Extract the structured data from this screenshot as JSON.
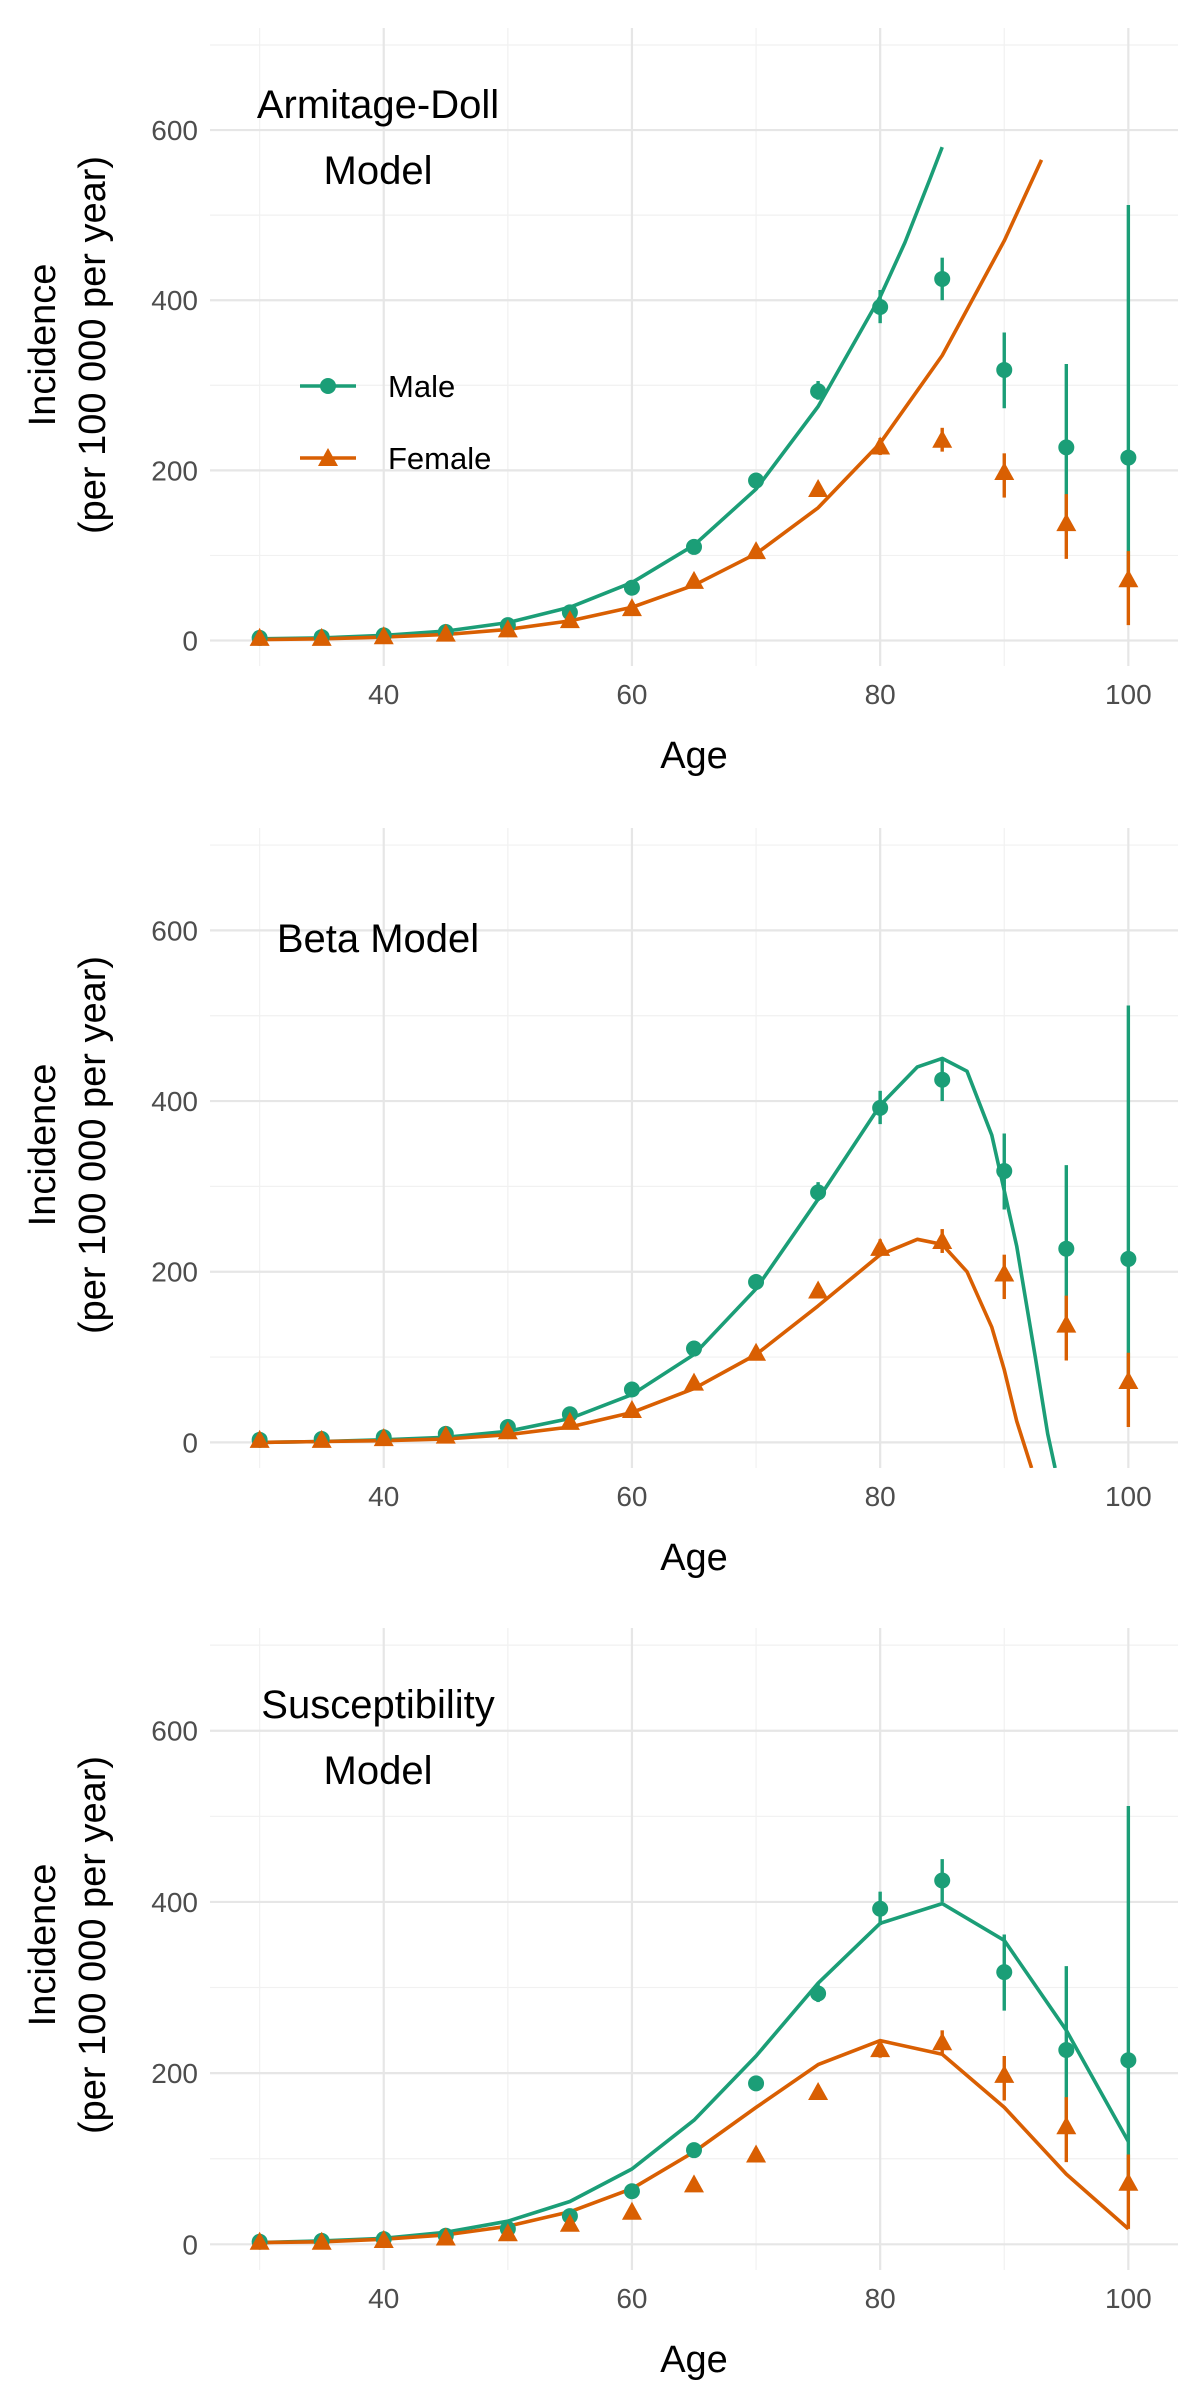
{
  "colors": {
    "male": "#1b9e77",
    "female": "#d95f02"
  },
  "chart_data": [
    {
      "type": "scatter",
      "title_lines": [
        "Armitage-Doll",
        "Model"
      ],
      "xlabel": "Age",
      "ylabel_lines": [
        "Incidence",
        "(per 100 000 per year)"
      ],
      "xlim": [
        26,
        104
      ],
      "ylim": [
        -30,
        720
      ],
      "xticks": [
        40,
        60,
        80,
        100
      ],
      "yticks": [
        0,
        200,
        400,
        600
      ],
      "grid": true,
      "legend": {
        "placement": "top-left",
        "entries": [
          {
            "label": "Male",
            "series": "male",
            "marker": "circle"
          },
          {
            "label": "Female",
            "series": "female",
            "marker": "triangle"
          }
        ]
      },
      "points": {
        "male": {
          "x": [
            30,
            35,
            40,
            45,
            50,
            55,
            60,
            65,
            70,
            75,
            80,
            85,
            90,
            95,
            100
          ],
          "y": [
            3,
            4,
            6,
            10,
            18,
            33,
            62,
            110,
            188,
            293,
            392,
            425,
            318,
            227,
            215
          ],
          "err_low": [
            1,
            2,
            3,
            6,
            14,
            28,
            56,
            104,
            181,
            283,
            373,
            400,
            273,
            140,
            70
          ],
          "err_high": [
            5,
            6,
            9,
            14,
            22,
            38,
            68,
            116,
            195,
            305,
            412,
            450,
            362,
            325,
            512
          ]
        },
        "female": {
          "x": [
            30,
            35,
            40,
            45,
            50,
            55,
            60,
            65,
            70,
            75,
            80,
            85,
            90,
            95,
            100
          ],
          "y": [
            3,
            3,
            5,
            8,
            13,
            24,
            38,
            70,
            105,
            178,
            228,
            236,
            198,
            138,
            72
          ],
          "err_low": [
            1,
            1,
            3,
            6,
            10,
            20,
            33,
            65,
            100,
            170,
            218,
            222,
            168,
            96,
            18
          ],
          "err_high": [
            5,
            5,
            7,
            10,
            16,
            28,
            43,
            75,
            110,
            186,
            238,
            250,
            220,
            172,
            105
          ]
        }
      },
      "fits": {
        "male": {
          "x": [
            30,
            35,
            40,
            45,
            50,
            55,
            60,
            65,
            70,
            75,
            80,
            82,
            84,
            85
          ],
          "y": [
            2,
            3,
            6,
            11,
            21,
            39,
            68,
            112,
            178,
            275,
            404,
            468,
            542,
            580
          ]
        },
        "female": {
          "x": [
            30,
            35,
            40,
            45,
            50,
            55,
            60,
            65,
            70,
            75,
            80,
            85,
            90,
            93
          ],
          "y": [
            1,
            2,
            4,
            7,
            13,
            23,
            39,
            65,
            102,
            156,
            232,
            335,
            470,
            565
          ]
        }
      }
    },
    {
      "type": "scatter",
      "title_lines": [
        "Beta Model"
      ],
      "xlabel": "Age",
      "ylabel_lines": [
        "Incidence",
        "(per 100 000 per year)"
      ],
      "xlim": [
        26,
        104
      ],
      "ylim": [
        -30,
        720
      ],
      "xticks": [
        40,
        60,
        80,
        100
      ],
      "yticks": [
        0,
        200,
        400,
        600
      ],
      "grid": true,
      "points": {
        "male": {
          "x": [
            30,
            35,
            40,
            45,
            50,
            55,
            60,
            65,
            70,
            75,
            80,
            85,
            90,
            95,
            100
          ],
          "y": [
            3,
            4,
            6,
            10,
            18,
            33,
            62,
            110,
            188,
            293,
            392,
            425,
            318,
            227,
            215
          ],
          "err_low": [
            1,
            2,
            3,
            6,
            14,
            28,
            56,
            104,
            181,
            283,
            373,
            400,
            273,
            140,
            70
          ],
          "err_high": [
            5,
            6,
            9,
            14,
            22,
            38,
            68,
            116,
            195,
            305,
            412,
            450,
            362,
            325,
            512
          ]
        },
        "female": {
          "x": [
            30,
            35,
            40,
            45,
            50,
            55,
            60,
            65,
            70,
            75,
            80,
            85,
            90,
            95,
            100
          ],
          "y": [
            3,
            3,
            5,
            8,
            13,
            24,
            38,
            70,
            105,
            178,
            228,
            236,
            198,
            138,
            72
          ],
          "err_low": [
            1,
            1,
            3,
            6,
            10,
            20,
            33,
            65,
            100,
            170,
            218,
            222,
            168,
            96,
            18
          ],
          "err_high": [
            5,
            5,
            7,
            10,
            16,
            28,
            43,
            75,
            110,
            186,
            238,
            250,
            220,
            172,
            105
          ]
        }
      },
      "fits": {
        "male": {
          "x": [
            30,
            35,
            40,
            45,
            50,
            55,
            60,
            65,
            70,
            75,
            80,
            83,
            85,
            87,
            89,
            91,
            92.5,
            93.5,
            94.1
          ],
          "y": [
            0,
            1,
            3,
            6,
            13,
            28,
            56,
            103,
            180,
            285,
            395,
            440,
            450,
            435,
            360,
            230,
            100,
            10,
            -30
          ]
        },
        "female": {
          "x": [
            30,
            35,
            40,
            45,
            50,
            55,
            60,
            65,
            70,
            75,
            80,
            83,
            85,
            87,
            89,
            90,
            91,
            92.2
          ],
          "y": [
            0,
            1,
            2,
            4,
            9,
            18,
            35,
            63,
            103,
            160,
            220,
            238,
            232,
            200,
            135,
            85,
            25,
            -30
          ]
        }
      }
    },
    {
      "type": "scatter",
      "title_lines": [
        "Susceptibility",
        "Model"
      ],
      "xlabel": "Age",
      "ylabel_lines": [
        "Incidence",
        "(per 100 000 per year)"
      ],
      "xlim": [
        26,
        104
      ],
      "ylim": [
        -30,
        720
      ],
      "xticks": [
        40,
        60,
        80,
        100
      ],
      "yticks": [
        0,
        200,
        400,
        600
      ],
      "grid": true,
      "points": {
        "male": {
          "x": [
            30,
            35,
            40,
            45,
            50,
            55,
            60,
            65,
            70,
            75,
            80,
            85,
            90,
            95,
            100
          ],
          "y": [
            3,
            4,
            6,
            10,
            18,
            33,
            62,
            110,
            188,
            293,
            392,
            425,
            318,
            227,
            215
          ],
          "err_low": [
            1,
            2,
            3,
            6,
            14,
            28,
            56,
            104,
            181,
            283,
            373,
            400,
            273,
            140,
            70
          ],
          "err_high": [
            5,
            6,
            9,
            14,
            22,
            38,
            68,
            116,
            195,
            305,
            412,
            450,
            362,
            325,
            512
          ]
        },
        "female": {
          "x": [
            30,
            35,
            40,
            45,
            50,
            55,
            60,
            65,
            70,
            75,
            80,
            85,
            90,
            95,
            100
          ],
          "y": [
            3,
            3,
            5,
            8,
            13,
            24,
            38,
            70,
            105,
            178,
            228,
            236,
            198,
            138,
            72
          ],
          "err_low": [
            1,
            1,
            3,
            6,
            10,
            20,
            33,
            65,
            100,
            170,
            218,
            222,
            168,
            96,
            18
          ],
          "err_high": [
            5,
            5,
            7,
            10,
            16,
            28,
            43,
            75,
            110,
            186,
            238,
            250,
            220,
            172,
            105
          ]
        }
      },
      "fits": {
        "male": {
          "x": [
            30,
            35,
            40,
            45,
            50,
            55,
            60,
            65,
            70,
            75,
            80,
            85,
            90,
            95,
            100
          ],
          "y": [
            2,
            4,
            7,
            14,
            27,
            50,
            88,
            145,
            220,
            305,
            375,
            398,
            355,
            250,
            120
          ]
        },
        "female": {
          "x": [
            30,
            35,
            40,
            45,
            50,
            55,
            60,
            65,
            70,
            75,
            80,
            85,
            90,
            95,
            100
          ],
          "y": [
            2,
            3,
            6,
            11,
            21,
            38,
            65,
            108,
            160,
            210,
            238,
            222,
            160,
            82,
            18
          ]
        }
      }
    }
  ]
}
